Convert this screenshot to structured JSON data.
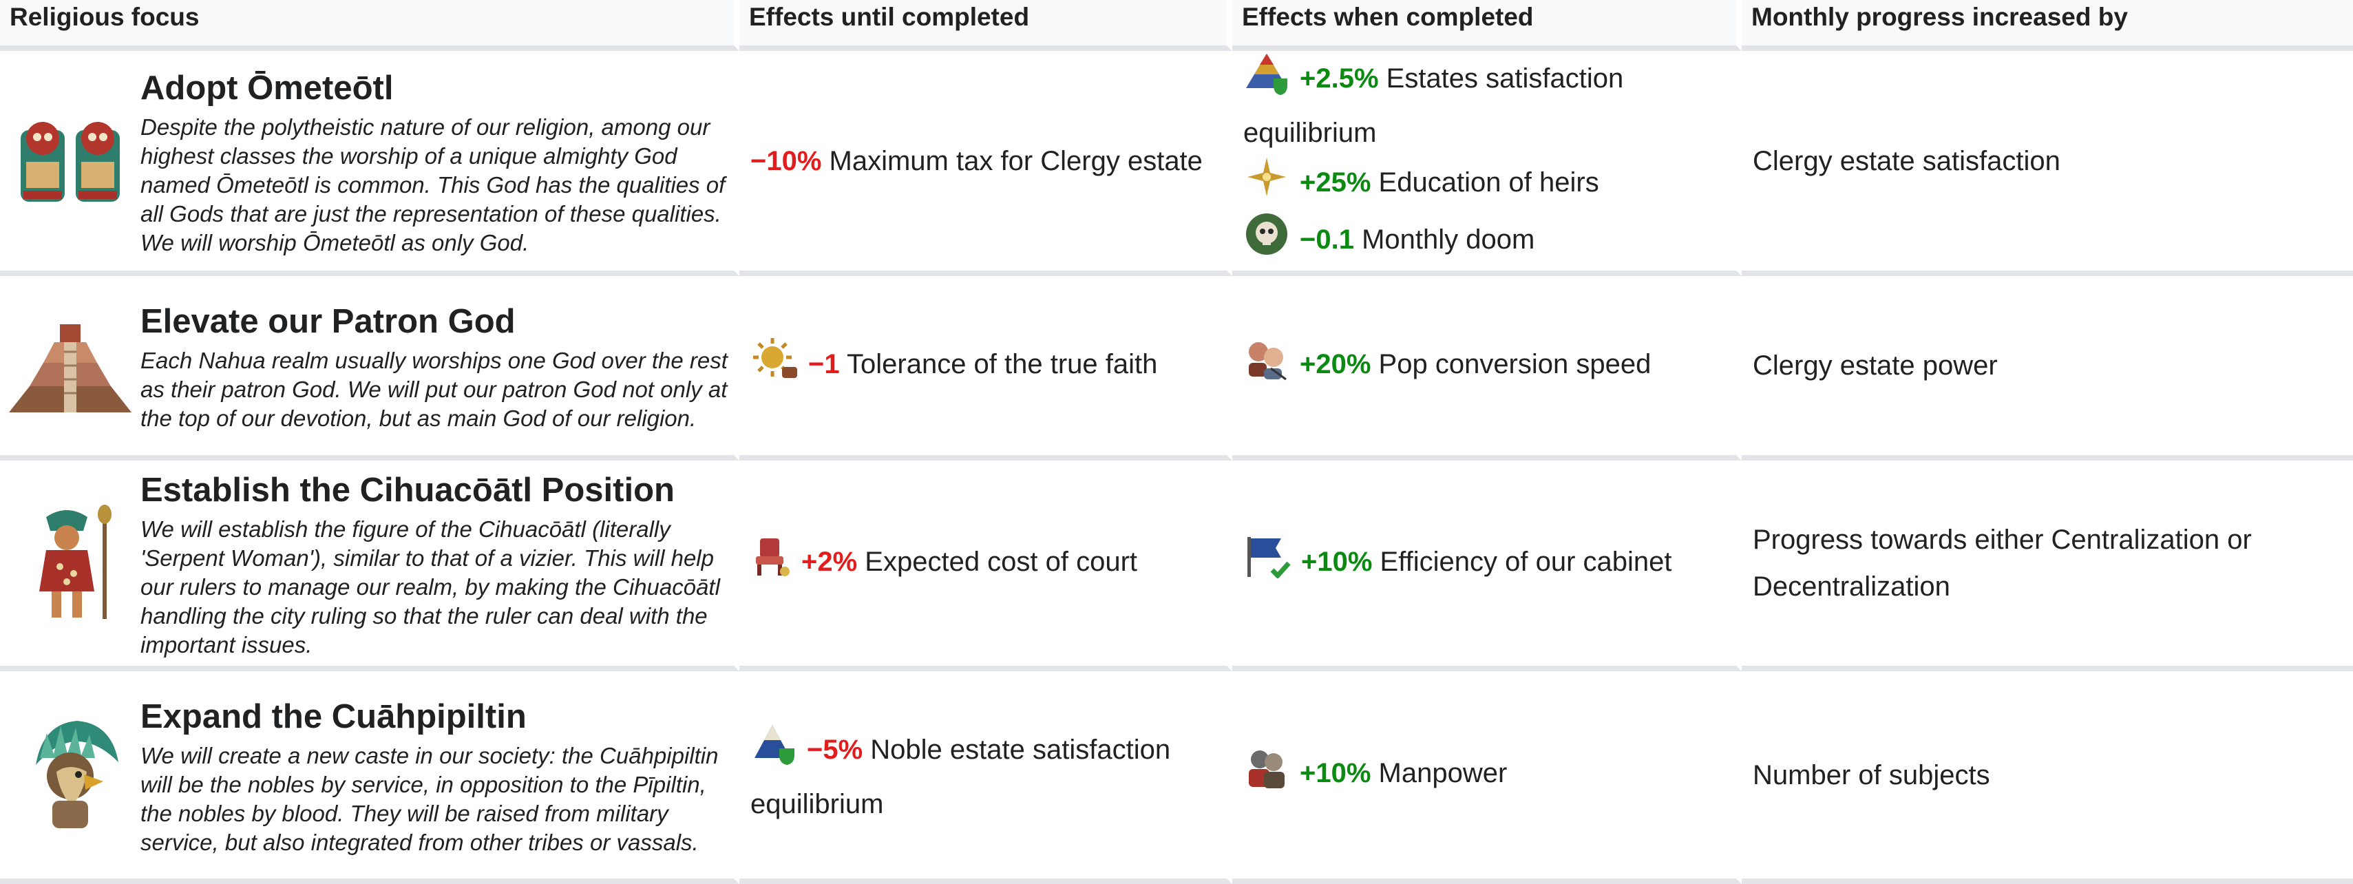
{
  "headers": [
    "Religious focus",
    "Effects until completed",
    "Effects when completed",
    "Monthly progress increased by"
  ],
  "rows": [
    {
      "title": "Adopt Ōmeteōtl",
      "desc": "Despite the polytheistic nature of our religion, among our highest classes the worship of a unique almighty God named Ōmeteōtl is common. This God has the qualities of all Gods that are just the representation of these qualities. We will worship Ōmeteōtl as only God.",
      "until": [
        {
          "value": "−10%",
          "text": " Maximum tax for Clergy estate"
        }
      ],
      "when": [
        {
          "icon": "estates-satisfaction-icon",
          "value": "+2.5%",
          "text": " Estates satisfaction equilibrium"
        },
        {
          "icon": "education-star-icon",
          "value": "+25%",
          "text": " Education of heirs"
        },
        {
          "icon": "doom-skull-icon",
          "value": "−0.1",
          "text": " Monthly doom"
        }
      ],
      "monthly": "Clergy estate satisfaction"
    },
    {
      "title": "Elevate our Patron God",
      "desc": "Each Nahua realm usually worships one God over the rest as their patron God. We will put our patron God not only at the top of our devotion, but as main God of our religion.",
      "until": [
        {
          "icon": "tolerance-sun-icon",
          "value": "−1",
          "text": " Tolerance of the true faith"
        }
      ],
      "when": [
        {
          "icon": "pop-conversion-icon",
          "value": "+20%",
          "text": " Pop conversion speed"
        }
      ],
      "monthly": "Clergy estate power"
    },
    {
      "title": "Establish the Cihuacōātl Position",
      "desc": "We will establish the figure of the Cihuacōātl (literally 'Serpent Woman'), similar to that of a vizier. This will help our rulers to manage our realm, by making the Cihuacōātl handling the city ruling so that the ruler can deal with the important issues.",
      "until": [
        {
          "icon": "court-cost-icon",
          "value": "+2%",
          "text": " Expected cost of court"
        }
      ],
      "when": [
        {
          "icon": "cabinet-flag-icon",
          "value": "+10%",
          "text": " Efficiency of our cabinet"
        }
      ],
      "monthly": "Progress towards either Centralization or Decentralization"
    },
    {
      "title": "Expand the Cuāhpipiltin",
      "desc": "We will create a new caste in our society: the Cuāhpipiltin will be the nobles by service, in opposition to the Pīpiltin, the nobles by blood. They will be raised from military service, but also integrated from other tribes or vassals.",
      "until": [
        {
          "icon": "noble-estate-icon",
          "value": "−5%",
          "text": " Noble estate satisfaction equilibrium"
        }
      ],
      "when": [
        {
          "icon": "manpower-icon",
          "value": "+10%",
          "text": " Manpower"
        }
      ],
      "monthly": "Number of subjects"
    }
  ]
}
